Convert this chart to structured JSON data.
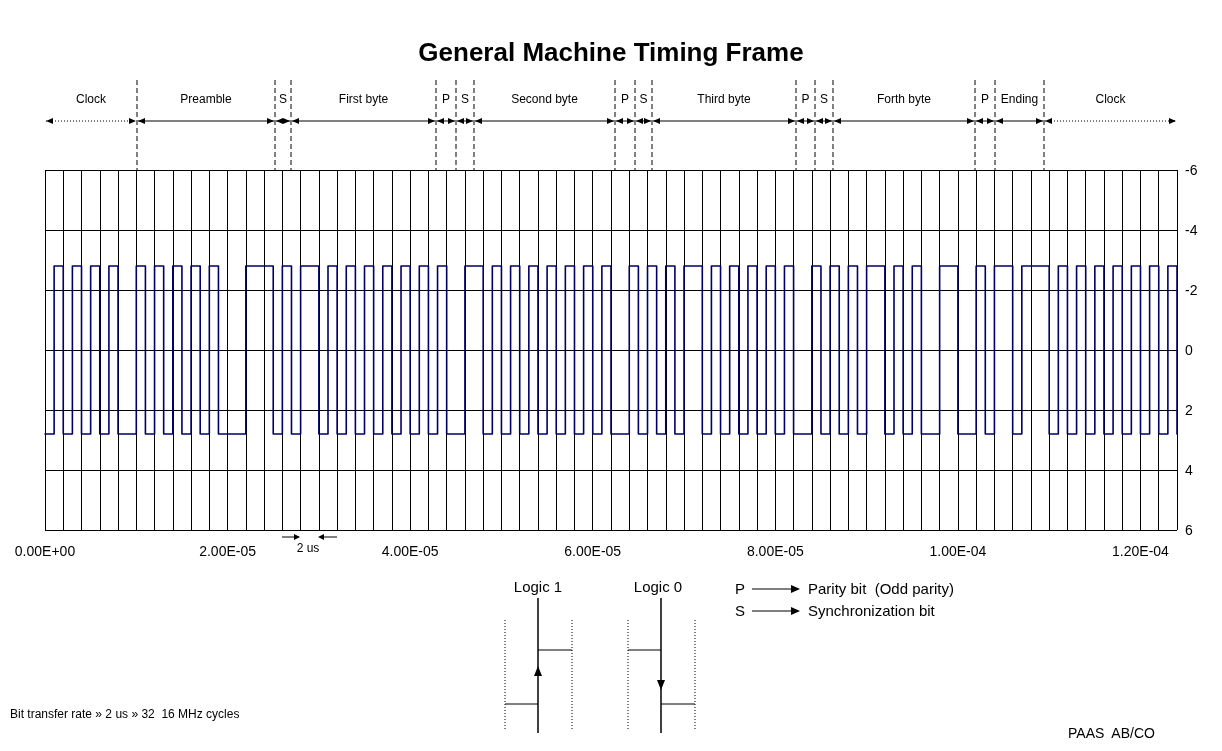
{
  "chart_data": {
    "type": "step",
    "title": "General Machine Timing Frame",
    "x": [
      0,
      1e-06,
      2e-06,
      3e-06,
      4e-06,
      5e-06,
      6e-06,
      7e-06,
      8e-06,
      1e-05,
      1.1e-05,
      1.2e-05,
      1.3e-05,
      1.4e-05,
      1.5e-05,
      1.6e-05,
      1.7e-05,
      1.8e-05,
      1.9e-05,
      2.2e-05,
      2.5e-05,
      2.6e-05,
      2.7e-05,
      2.8e-05,
      3e-05,
      3.1e-05,
      3.2e-05,
      3.3e-05,
      3.4e-05,
      3.5e-05,
      3.6e-05,
      3.7e-05,
      3.8e-05,
      3.9e-05,
      4e-05,
      4.1e-05,
      4.2e-05,
      4.3e-05,
      4.4e-05,
      4.6e-05,
      4.8e-05,
      4.9e-05,
      5e-05,
      5.1e-05,
      5.2e-05,
      5.3e-05,
      5.4e-05,
      5.5e-05,
      5.6e-05,
      5.7e-05,
      5.8e-05,
      5.9e-05,
      6e-05,
      6.1e-05,
      6.2e-05,
      6.4e-05,
      6.5e-05,
      6.6e-05,
      6.7e-05,
      6.8e-05,
      6.9e-05,
      7e-05,
      7.2e-05,
      7.3e-05,
      7.4e-05,
      7.5e-05,
      7.6e-05,
      7.7e-05,
      7.8e-05,
      7.9e-05,
      8e-05,
      8.1e-05,
      8.2e-05,
      8.4e-05,
      8.5e-05,
      8.6e-05,
      8.7e-05,
      8.8e-05,
      8.9e-05,
      9e-05,
      9.2e-05,
      9.3e-05,
      9.4e-05,
      9.5e-05,
      9.6e-05,
      9.8e-05,
      0.0001,
      0.000102,
      0.000103,
      0.000104,
      0.000106,
      0.000107,
      0.00011,
      0.000111,
      0.000112,
      0.000113,
      0.000114,
      0.000115,
      0.000116,
      0.000117,
      0.000118,
      0.000119,
      0.00012,
      0.000121,
      0.000122,
      0.000123,
      0.000124
    ],
    "values": [
      2.8,
      -2.8,
      2.8,
      -2.8,
      2.8,
      -2.8,
      2.8,
      -2.8,
      2.8,
      -2.8,
      2.8,
      -2.8,
      2.8,
      -2.8,
      2.8,
      -2.8,
      2.8,
      -2.8,
      2.8,
      -2.8,
      2.8,
      -2.8,
      2.8,
      -2.8,
      2.8,
      -2.8,
      2.8,
      -2.8,
      2.8,
      -2.8,
      2.8,
      -2.8,
      2.8,
      -2.8,
      2.8,
      -2.8,
      2.8,
      -2.8,
      2.8,
      -2.8,
      2.8,
      -2.8,
      2.8,
      -2.8,
      2.8,
      -2.8,
      2.8,
      -2.8,
      2.8,
      -2.8,
      2.8,
      -2.8,
      2.8,
      -2.8,
      2.8,
      -2.8,
      2.8,
      -2.8,
      2.8,
      -2.8,
      2.8,
      -2.8,
      2.8,
      -2.8,
      2.8,
      -2.8,
      2.8,
      -2.8,
      2.8,
      -2.8,
      2.8,
      -2.8,
      2.8,
      -2.8,
      2.8,
      -2.8,
      2.8,
      -2.8,
      2.8,
      -2.8,
      2.8,
      -2.8,
      2.8,
      -2.8,
      2.8,
      -2.8,
      2.8,
      -2.8,
      2.8,
      -2.8,
      2.8,
      -2.8,
      2.8,
      -2.8,
      2.8,
      -2.8,
      2.8,
      -2.8,
      2.8,
      -2.8,
      2.8,
      -2.8,
      2.8,
      -2.8,
      2.8,
      -2.8,
      2.8
    ],
    "color": "#000066",
    "xlim": [
      0,
      0.000124
    ],
    "xticks": [
      {
        "value": 0,
        "label": "0.00E+00"
      },
      {
        "value": 2e-06,
        "label": null
      },
      {
        "value": 4e-06,
        "label": null
      },
      {
        "value": 6e-06,
        "label": null
      },
      {
        "value": 8e-06,
        "label": null
      },
      {
        "value": 1e-05,
        "label": null
      },
      {
        "value": 1.2e-05,
        "label": null
      },
      {
        "value": 1.4e-05,
        "label": null
      },
      {
        "value": 1.6e-05,
        "label": null
      },
      {
        "value": 1.8e-05,
        "label": null
      },
      {
        "value": 2e-05,
        "label": "2.00E-05"
      },
      {
        "value": 2.2e-05,
        "label": null
      },
      {
        "value": 2.4e-05,
        "label": null
      },
      {
        "value": 2.6e-05,
        "label": null
      },
      {
        "value": 2.8e-05,
        "label": null
      },
      {
        "value": 3e-05,
        "label": null
      },
      {
        "value": 3.2e-05,
        "label": null
      },
      {
        "value": 3.4e-05,
        "label": null
      },
      {
        "value": 3.6e-05,
        "label": null
      },
      {
        "value": 3.8e-05,
        "label": null
      },
      {
        "value": 4e-05,
        "label": "4.00E-05"
      },
      {
        "value": 4.2e-05,
        "label": null
      },
      {
        "value": 4.4e-05,
        "label": null
      },
      {
        "value": 4.6e-05,
        "label": null
      },
      {
        "value": 4.8e-05,
        "label": null
      },
      {
        "value": 5e-05,
        "label": null
      },
      {
        "value": 5.2e-05,
        "label": null
      },
      {
        "value": 5.4e-05,
        "label": null
      },
      {
        "value": 5.6e-05,
        "label": null
      },
      {
        "value": 5.8e-05,
        "label": null
      },
      {
        "value": 6e-05,
        "label": "6.00E-05"
      },
      {
        "value": 6.2e-05,
        "label": null
      },
      {
        "value": 6.4e-05,
        "label": null
      },
      {
        "value": 6.6e-05,
        "label": null
      },
      {
        "value": 6.8e-05,
        "label": null
      },
      {
        "value": 7e-05,
        "label": null
      },
      {
        "value": 7.2e-05,
        "label": null
      },
      {
        "value": 7.4e-05,
        "label": null
      },
      {
        "value": 7.6e-05,
        "label": null
      },
      {
        "value": 7.8e-05,
        "label": null
      },
      {
        "value": 8e-05,
        "label": "8.00E-05"
      },
      {
        "value": 8.2e-05,
        "label": null
      },
      {
        "value": 8.4e-05,
        "label": null
      },
      {
        "value": 8.6e-05,
        "label": null
      },
      {
        "value": 8.8e-05,
        "label": null
      },
      {
        "value": 9e-05,
        "label": null
      },
      {
        "value": 9.2e-05,
        "label": null
      },
      {
        "value": 9.4e-05,
        "label": null
      },
      {
        "value": 9.6e-05,
        "label": null
      },
      {
        "value": 9.8e-05,
        "label": null
      },
      {
        "value": 0.0001,
        "label": "1.00E-04"
      },
      {
        "value": 0.000102,
        "label": null
      },
      {
        "value": 0.000104,
        "label": null
      },
      {
        "value": 0.000106,
        "label": null
      },
      {
        "value": 0.000108,
        "label": null
      },
      {
        "value": 0.00011,
        "label": null
      },
      {
        "value": 0.000112,
        "label": null
      },
      {
        "value": 0.000114,
        "label": null
      },
      {
        "value": 0.000116,
        "label": null
      },
      {
        "value": 0.000118,
        "label": null
      },
      {
        "value": 0.00012,
        "label": "1.20E-04"
      },
      {
        "value": 0.000122,
        "label": null
      },
      {
        "value": 0.000124,
        "label": null
      }
    ],
    "ylim": [
      6,
      -6
    ],
    "yticks": [
      -6,
      -4,
      -2,
      0,
      2,
      4,
      6
    ],
    "grid": true,
    "annotations": [
      "Clock",
      "Preamble",
      "S",
      "First byte",
      "P",
      "S",
      "Second byte",
      "P",
      "S",
      "Third byte",
      "P",
      "S",
      "Forth byte",
      "P",
      "Ending",
      "Clock",
      "2 us",
      "Logic 1",
      "Logic 0",
      "P",
      "Parity bit  (Odd parity)",
      "S",
      "Synchronization bit",
      "Bit transfer rate » 2 us » 32  16 MHz cycles",
      "PAAS  AB/CO"
    ]
  }
}
